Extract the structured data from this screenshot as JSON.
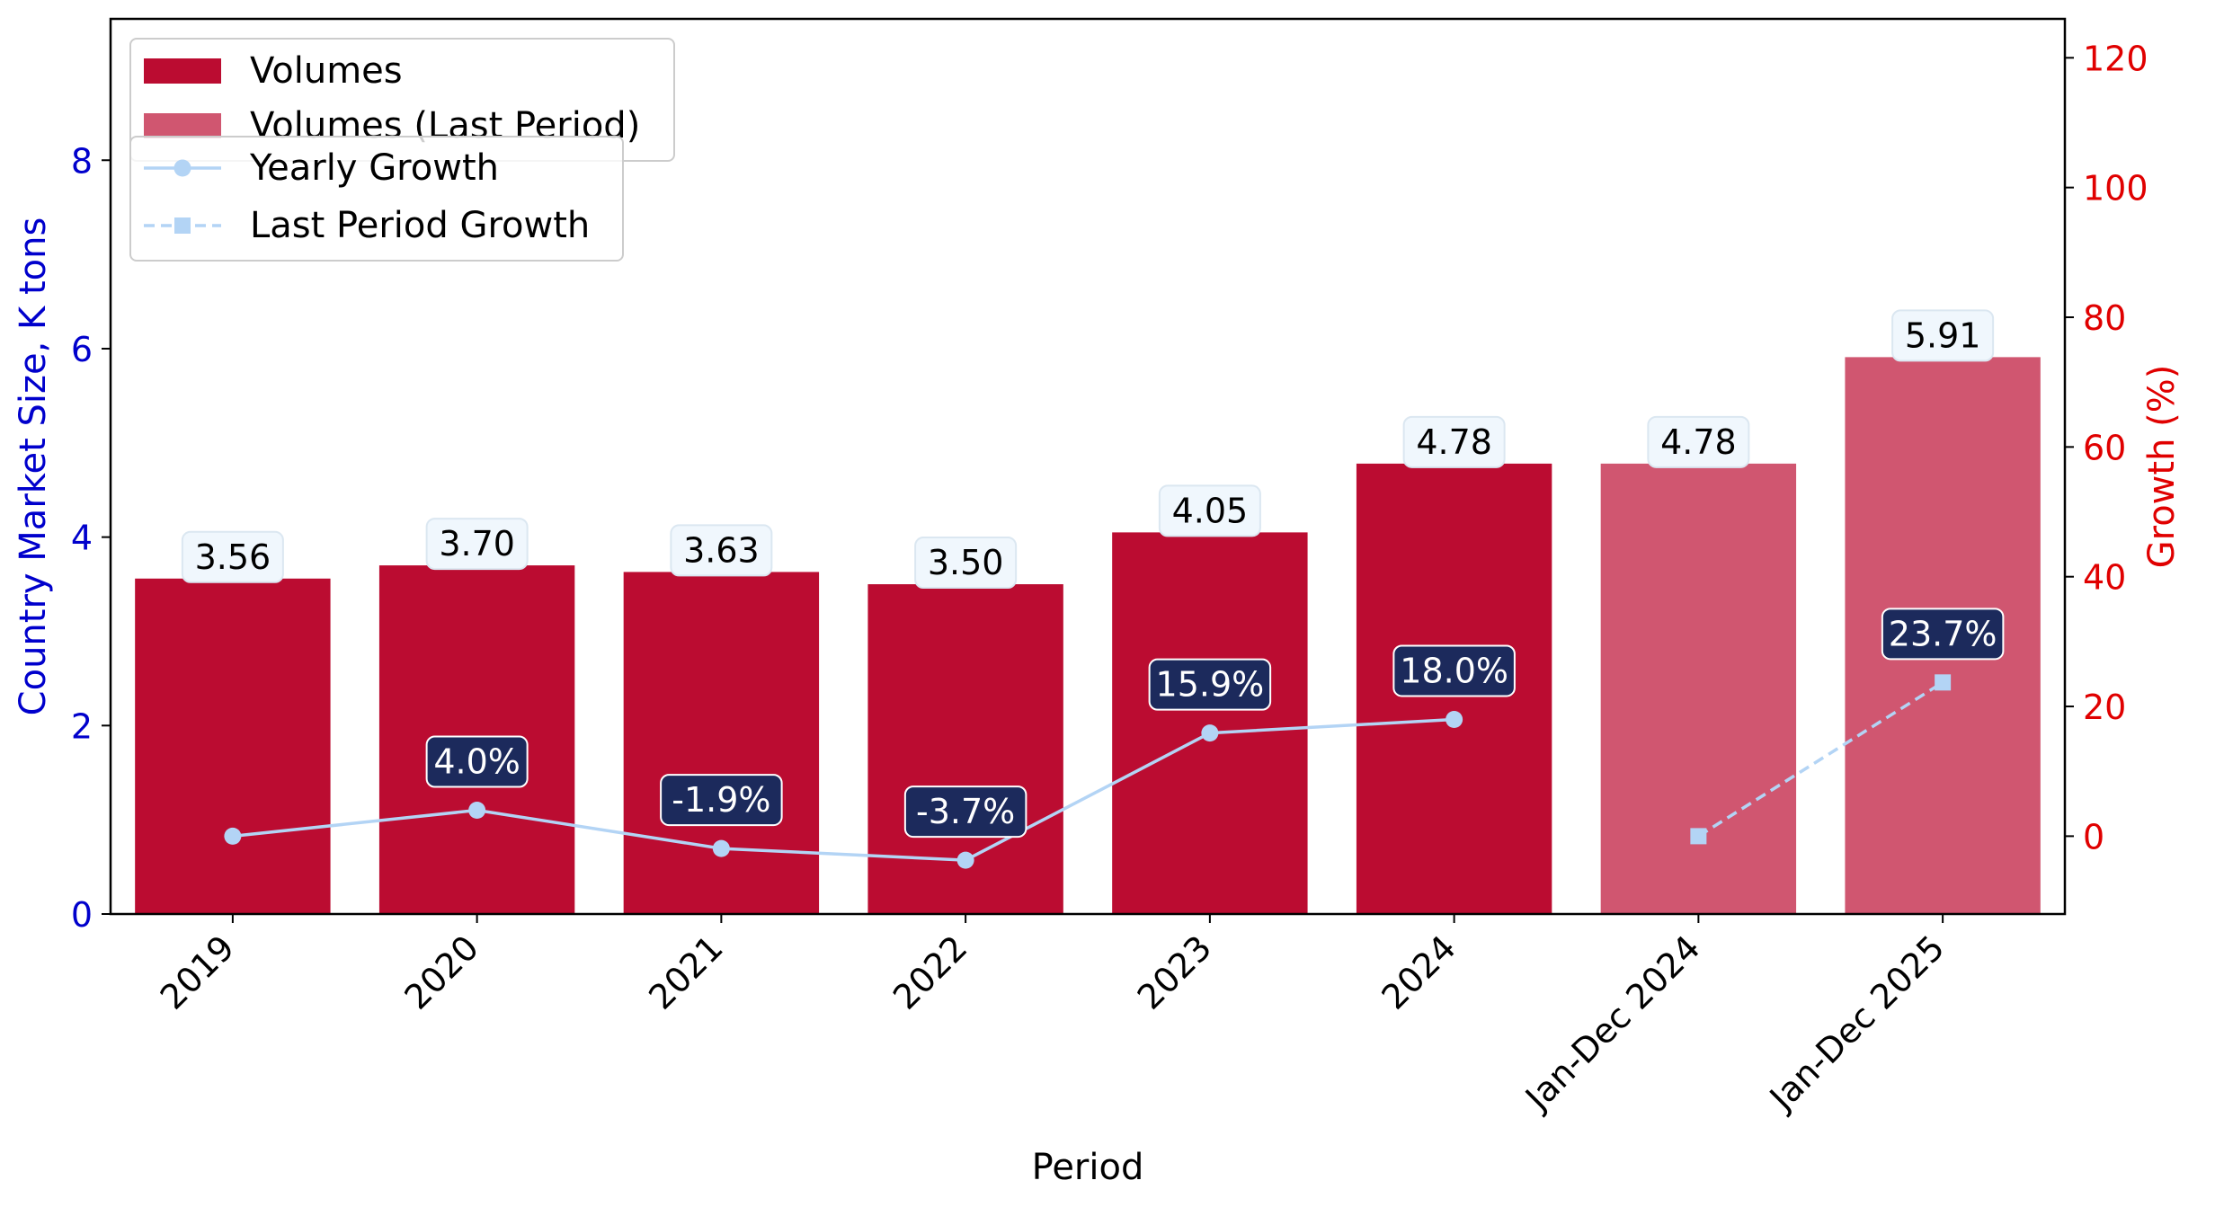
{
  "chart_data": {
    "type": "bar",
    "categories": [
      "2019",
      "2020",
      "2021",
      "2022",
      "2023",
      "2024",
      "Jan-Dec 2024",
      "Jan-Dec 2025"
    ],
    "series": [
      {
        "name": "Volumes",
        "kind": "bar",
        "axis": "left",
        "color": "#bb0c31",
        "values": [
          3.56,
          3.7,
          3.63,
          3.5,
          4.05,
          4.78,
          null,
          null
        ],
        "labels": [
          "3.56",
          "3.70",
          "3.63",
          "3.50",
          "4.05",
          "4.78",
          "",
          ""
        ]
      },
      {
        "name": "Volumes (Last Period)",
        "kind": "bar",
        "axis": "left",
        "color": "#d05670",
        "values": [
          null,
          null,
          null,
          null,
          null,
          null,
          4.78,
          5.91
        ],
        "labels": [
          "",
          "",
          "",
          "",
          "",
          "",
          "4.78",
          "5.91"
        ]
      },
      {
        "name": "Yearly Growth",
        "kind": "line",
        "axis": "right",
        "color": "#b3d4f5",
        "marker": "circle",
        "dash": "solid",
        "values": [
          0.0,
          4.0,
          -1.9,
          -3.7,
          15.9,
          18.0,
          null,
          null
        ],
        "labels": [
          "",
          "4.0%",
          "-1.9%",
          "-3.7%",
          "15.9%",
          "18.0%",
          "",
          ""
        ]
      },
      {
        "name": "Last Period Growth",
        "kind": "line",
        "axis": "right",
        "color": "#b3d4f5",
        "marker": "square",
        "dash": "dashed",
        "values": [
          null,
          null,
          null,
          null,
          null,
          null,
          0.0,
          23.7
        ],
        "labels": [
          "",
          "",
          "",
          "",
          "",
          "",
          "",
          "23.7%"
        ]
      }
    ],
    "xlabel": "Period",
    "ylabel": "Country Market Size, K tons",
    "y2label": "Growth (%)",
    "ylim": [
      0,
      9.5
    ],
    "y2lim": [
      -12,
      126
    ],
    "yticks": [
      0,
      2,
      4,
      6,
      8
    ],
    "y2ticks": [
      0,
      20,
      40,
      60,
      80,
      100,
      120
    ],
    "ylabel_color": "#0000cc",
    "y2label_color": "#e00000",
    "value_label_bg": "#f0f7fd",
    "growth_label_bg": "#1c2a5c",
    "grid": false,
    "legend_placement": "upper-left"
  }
}
